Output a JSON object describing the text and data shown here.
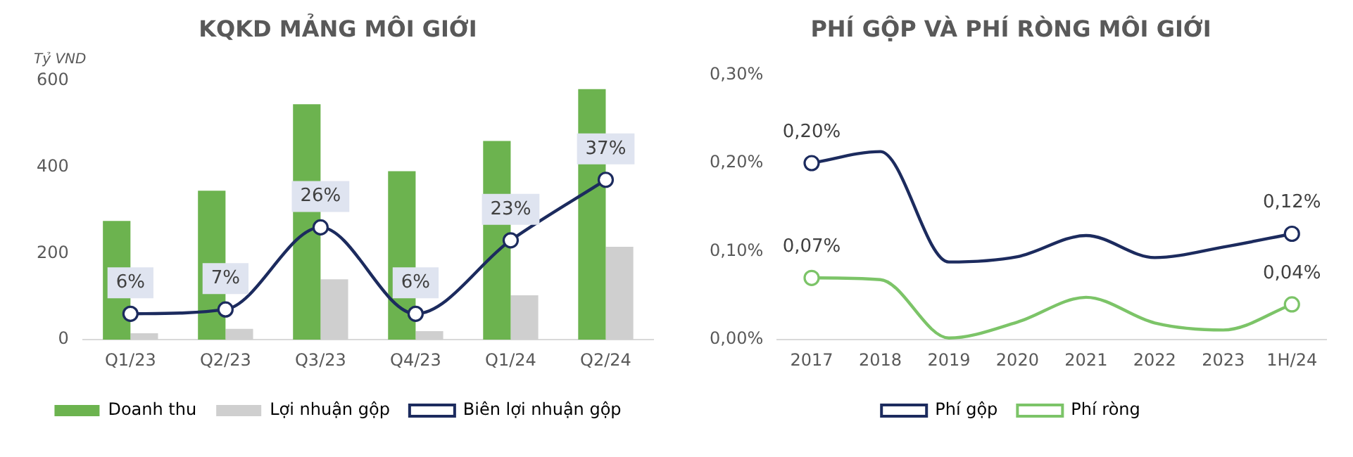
{
  "chart_data": [
    {
      "type": "bar",
      "title": "KQKD MẢNG MÔI GIỚI",
      "ylabel": "Tỷ VND",
      "categories": [
        "Q1/23",
        "Q2/23",
        "Q3/23",
        "Q4/23",
        "Q1/24",
        "Q2/24"
      ],
      "series": [
        {
          "name": "Doanh thu",
          "color": "#6cb34f",
          "values": [
            275,
            345,
            545,
            390,
            460,
            580
          ]
        },
        {
          "name": "Lợi nhuận gộp",
          "color": "#cfcfcf",
          "values": [
            15,
            25,
            140,
            20,
            103,
            215
          ]
        },
        {
          "name": "Biên lợi nhuận gộp",
          "type": "line",
          "axis": "y2",
          "color": "#1c2b5e",
          "values": [
            6,
            7,
            26,
            6,
            23,
            37
          ],
          "value_labels": [
            "6%",
            "7%",
            "26%",
            "6%",
            "23%",
            "37%"
          ]
        }
      ],
      "ylim": [
        0,
        600
      ],
      "yticks": [
        0,
        200,
        400,
        600
      ],
      "marker": "circle",
      "grid": false,
      "legend": "bottom"
    },
    {
      "type": "line",
      "title": "PHÍ GỘP VÀ PHÍ RÒNG MÔI GIỚI",
      "categories": [
        "2017",
        "2018",
        "2019",
        "2020",
        "2021",
        "2022",
        "2023",
        "1H/24"
      ],
      "series": [
        {
          "name": "Phí gộp",
          "color": "#1c2b5e",
          "values": [
            0.2,
            0.213,
            0.088,
            0.094,
            0.118,
            0.093,
            0.105,
            0.12
          ],
          "value_labels": [
            "0,20%",
            null,
            null,
            null,
            null,
            null,
            null,
            "0,12%"
          ]
        },
        {
          "name": "Phí ròng",
          "color": "#7cc468",
          "values": [
            0.07,
            0.068,
            0.002,
            0.02,
            0.048,
            0.019,
            0.011,
            0.04
          ],
          "value_labels": [
            "0,07%",
            null,
            null,
            null,
            null,
            null,
            null,
            "0,04%"
          ]
        }
      ],
      "ylim": [
        0,
        0.3
      ],
      "yticks": [
        {
          "value": 0,
          "label": "0,00%"
        },
        {
          "value": 0.1,
          "label": "0,10%"
        },
        {
          "value": 0.2,
          "label": "0,20%"
        },
        {
          "value": 0.3,
          "label": "0,30%"
        }
      ],
      "grid": false,
      "legend": "bottom"
    }
  ]
}
